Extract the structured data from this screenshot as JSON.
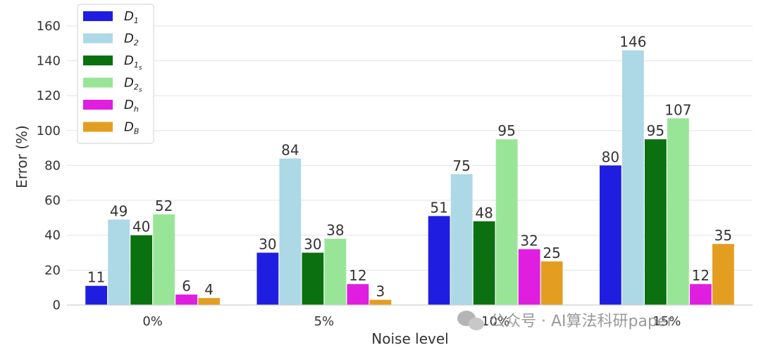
{
  "chart_data": {
    "type": "bar",
    "xlabel": "Noise level",
    "ylabel": "Error (%)",
    "ylim": [
      0,
      170
    ],
    "yticks": [
      0,
      20,
      40,
      60,
      80,
      100,
      120,
      140,
      160
    ],
    "grid": "horizontal",
    "legend_position": "top-left",
    "categories": [
      "0%",
      "5%",
      "10%",
      "15%"
    ],
    "series": [
      {
        "name": "D",
        "sub": "1",
        "subsub": "",
        "color": "#1f1ee0",
        "values": [
          11,
          30,
          51,
          80
        ]
      },
      {
        "name": "D",
        "sub": "2",
        "subsub": "",
        "color": "#add8e6",
        "values": [
          49,
          84,
          75,
          146
        ]
      },
      {
        "name": "D",
        "sub": "1",
        "subsub": "s",
        "color": "#0a7010",
        "values": [
          40,
          30,
          48,
          95
        ]
      },
      {
        "name": "D",
        "sub": "2",
        "subsub": "s",
        "color": "#98e597",
        "values": [
          52,
          38,
          95,
          107
        ]
      },
      {
        "name": "D",
        "sub": "h",
        "subsub": "",
        "color": "#e01ee0",
        "values": [
          6,
          12,
          32,
          12
        ]
      },
      {
        "name": "D",
        "sub": "B",
        "subsub": "",
        "color": "#e39e22",
        "values": [
          4,
          3,
          25,
          35
        ]
      }
    ]
  },
  "watermark": {
    "text": "公众号 · AI算法科研paper",
    "icon": "wechat-icon"
  }
}
